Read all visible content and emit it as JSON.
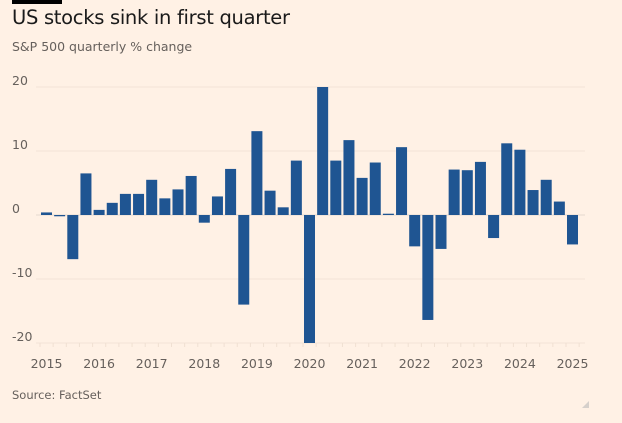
{
  "header": {
    "title": "US stocks sink in first quarter",
    "subtitle": "S&P 500 quarterly % change"
  },
  "footer": {
    "source": "Source: FactSet"
  },
  "colors": {
    "background": "#fff1e5",
    "bar": "#1f5592",
    "text": "#66605c",
    "title": "#1a1a1a"
  },
  "chart_data": {
    "type": "bar",
    "title": "US stocks sink in first quarter",
    "subtitle": "S&P 500 quarterly % change",
    "xlabel": "",
    "ylabel": "",
    "ylim": [
      -20,
      20
    ],
    "yticks": [
      20,
      10,
      0,
      -10,
      -20
    ],
    "xtick_labels": [
      "2015",
      "2016",
      "2017",
      "2018",
      "2019",
      "2020",
      "2021",
      "2022",
      "2023",
      "2024",
      "2025"
    ],
    "grid": true,
    "legend": "none",
    "categories": [
      "2015 Q1",
      "2015 Q2",
      "2015 Q3",
      "2015 Q4",
      "2016 Q1",
      "2016 Q2",
      "2016 Q3",
      "2016 Q4",
      "2017 Q1",
      "2017 Q2",
      "2017 Q3",
      "2017 Q4",
      "2018 Q1",
      "2018 Q2",
      "2018 Q3",
      "2018 Q4",
      "2019 Q1",
      "2019 Q2",
      "2019 Q3",
      "2019 Q4",
      "2020 Q1",
      "2020 Q2",
      "2020 Q3",
      "2020 Q4",
      "2021 Q1",
      "2021 Q2",
      "2021 Q3",
      "2021 Q4",
      "2022 Q1",
      "2022 Q2",
      "2022 Q3",
      "2022 Q4",
      "2023 Q1",
      "2023 Q2",
      "2023 Q3",
      "2023 Q4",
      "2024 Q1",
      "2024 Q2",
      "2024 Q3",
      "2024 Q4",
      "2025 Q1"
    ],
    "values": [
      0.4,
      -0.2,
      -6.9,
      6.5,
      0.8,
      1.9,
      3.3,
      3.3,
      5.5,
      2.6,
      4.0,
      6.1,
      -1.2,
      2.9,
      7.2,
      -14.0,
      13.1,
      3.8,
      1.2,
      8.5,
      -20.0,
      20.0,
      8.5,
      11.7,
      5.8,
      8.2,
      0.2,
      10.6,
      -4.9,
      -16.4,
      -5.3,
      7.1,
      7.0,
      8.3,
      -3.6,
      11.2,
      10.2,
      3.9,
      5.5,
      2.1,
      -4.6
    ],
    "source": "Source: FactSet"
  }
}
